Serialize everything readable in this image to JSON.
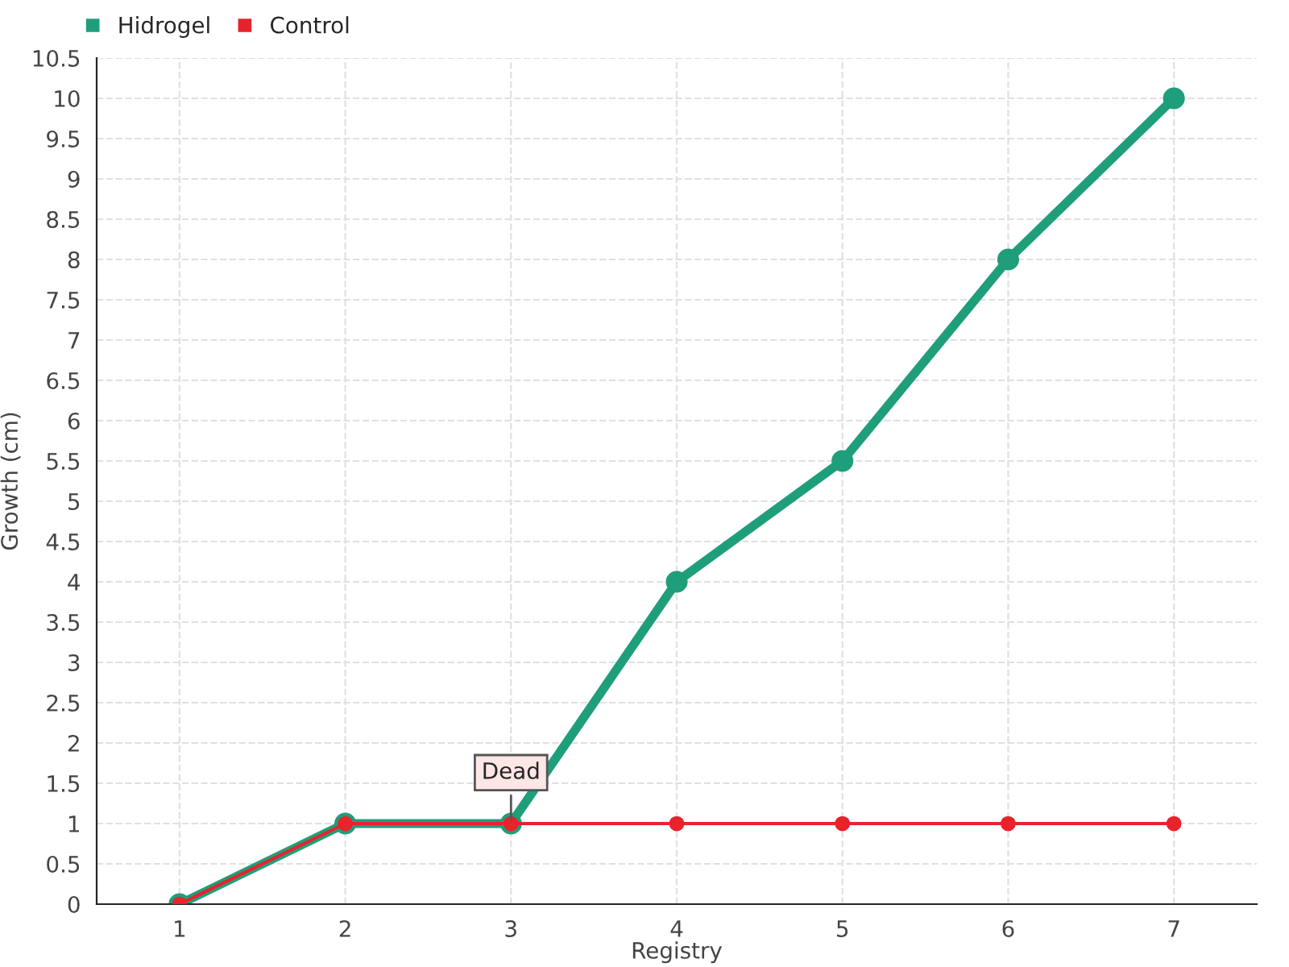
{
  "chart_data": {
    "type": "line",
    "xlabel": "Registry",
    "ylabel": "Growth (cm)",
    "categories": [
      "1",
      "2",
      "3",
      "4",
      "5",
      "6",
      "7"
    ],
    "series": [
      {
        "name": "Hidrogel",
        "color": "#1f9e7c",
        "values": [
          0,
          1,
          1,
          4,
          5.5,
          8,
          10
        ]
      },
      {
        "name": "Control",
        "color": "#e8232b",
        "values": [
          0,
          1,
          1,
          1,
          1,
          1,
          1
        ]
      }
    ],
    "ylim": [
      0,
      10.5
    ],
    "yticks": [
      0,
      0.5,
      1,
      1.5,
      2,
      2.5,
      3,
      3.5,
      4,
      4.5,
      5,
      5.5,
      6,
      6.5,
      7,
      7.5,
      8,
      8.5,
      9,
      9.5,
      10,
      10.5
    ],
    "annotations": [
      {
        "text": "Dead",
        "x": "3",
        "y": 1
      }
    ],
    "grid": true,
    "legend": "top left",
    "marker": "circle",
    "line_style": "solid"
  }
}
